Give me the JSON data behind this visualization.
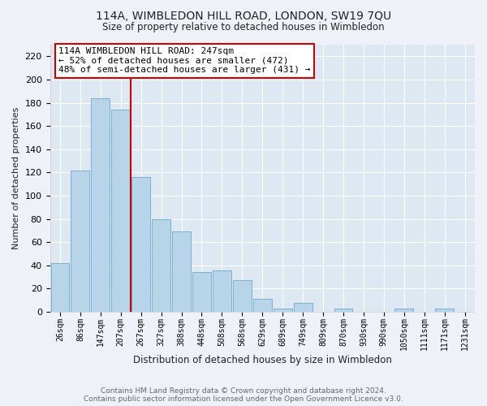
{
  "title": "114A, WIMBLEDON HILL ROAD, LONDON, SW19 7QU",
  "subtitle": "Size of property relative to detached houses in Wimbledon",
  "xlabel": "Distribution of detached houses by size in Wimbledon",
  "ylabel": "Number of detached properties",
  "bar_labels": [
    "26sqm",
    "86sqm",
    "147sqm",
    "207sqm",
    "267sqm",
    "327sqm",
    "388sqm",
    "448sqm",
    "508sqm",
    "568sqm",
    "629sqm",
    "689sqm",
    "749sqm",
    "809sqm",
    "870sqm",
    "930sqm",
    "990sqm",
    "1050sqm",
    "1111sqm",
    "1171sqm",
    "1231sqm"
  ],
  "bar_values": [
    42,
    122,
    184,
    174,
    116,
    80,
    69,
    34,
    36,
    27,
    11,
    3,
    8,
    0,
    3,
    0,
    0,
    3,
    0,
    3,
    0
  ],
  "bar_color": "#b8d4e8",
  "bar_edge_color": "#7aafd4",
  "vline_color": "#cc0000",
  "ylim": [
    0,
    230
  ],
  "yticks": [
    0,
    20,
    40,
    60,
    80,
    100,
    120,
    140,
    160,
    180,
    200,
    220
  ],
  "annotation_title": "114A WIMBLEDON HILL ROAD: 247sqm",
  "annotation_line1": "← 52% of detached houses are smaller (472)",
  "annotation_line2": "48% of semi-detached houses are larger (431) →",
  "annotation_box_color": "#ffffff",
  "annotation_box_edge": "#cc0000",
  "footer1": "Contains HM Land Registry data © Crown copyright and database right 2024.",
  "footer2": "Contains public sector information licensed under the Open Government Licence v3.0.",
  "bg_color": "#eef2f8",
  "plot_bg_color": "#dde8f2",
  "grid_color": "#ffffff",
  "title_color": "#222222",
  "footer_color": "#666666"
}
